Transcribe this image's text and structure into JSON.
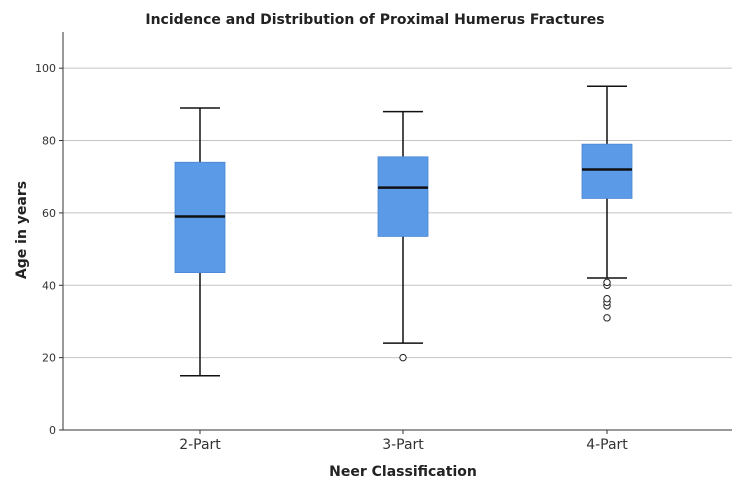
{
  "chart_data": {
    "type": "boxplot",
    "title": "Incidence and Distribution of Proximal Humerus Fractures",
    "xlabel": "Neer Classification",
    "ylabel": "Age in years",
    "ylim": [
      0,
      110
    ],
    "yticks": [
      0,
      20,
      40,
      60,
      80,
      100
    ],
    "grid": true,
    "box_color": "#5b9ae6",
    "categories": [
      "2-Part",
      "3-Part",
      "4-Part"
    ],
    "boxes": [
      {
        "category": "2-Part",
        "whisker_low": 15,
        "q1": 43.5,
        "median": 59,
        "q3": 74,
        "whisker_high": 89,
        "outliers": []
      },
      {
        "category": "3-Part",
        "whisker_low": 24,
        "q1": 53.5,
        "median": 67,
        "q3": 75.5,
        "whisker_high": 88,
        "outliers": [
          20
        ]
      },
      {
        "category": "4-Part",
        "whisker_low": 42,
        "q1": 64,
        "median": 72,
        "q3": 79,
        "whisker_high": 95,
        "outliers": [
          40,
          40.8,
          34.3,
          35.3,
          36.3,
          31
        ]
      }
    ]
  }
}
